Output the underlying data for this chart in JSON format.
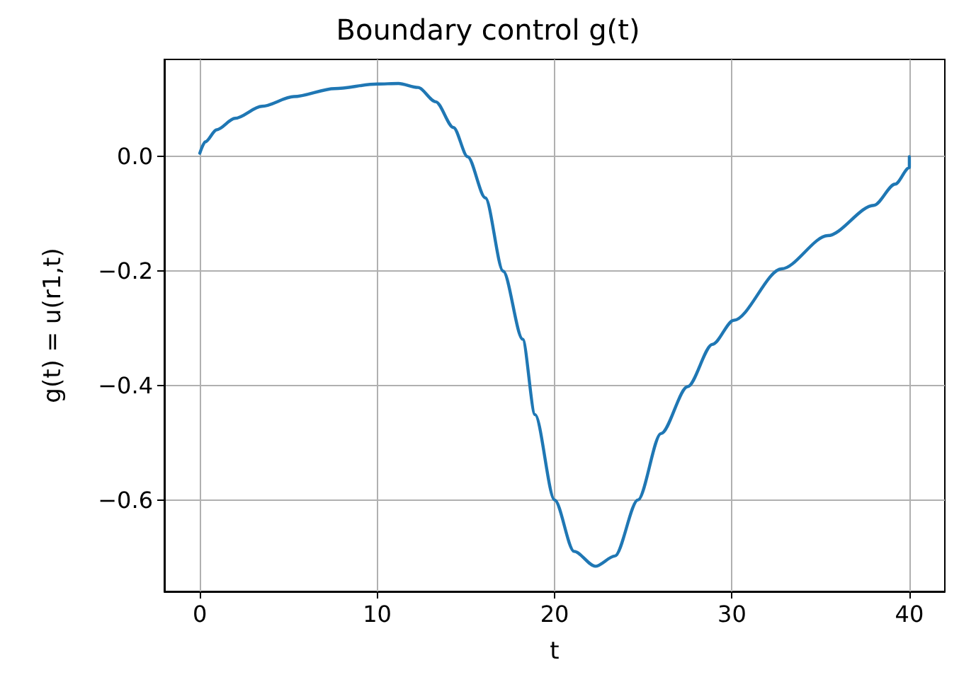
{
  "chart_data": {
    "type": "line",
    "title": "Boundary control g(t)",
    "xlabel": "t",
    "ylabel": "g(t) = u(r1,t)",
    "series": [
      {
        "color": "#1f77b4",
        "x": [
          0,
          0.31,
          0.95,
          1.98,
          3.5,
          5.3,
          7.6,
          10,
          11.2,
          12.3,
          13.3,
          14.3,
          15.1,
          16.1,
          17.1,
          18.2,
          18.9,
          20,
          21.1,
          22.3,
          23.4,
          24.7,
          26,
          27.5,
          28.9,
          30.1,
          32.8,
          35.4,
          38,
          39.2,
          40,
          40
        ],
        "values": [
          0.006,
          0.026,
          0.047,
          0.067,
          0.088,
          0.105,
          0.119,
          0.127,
          0.128,
          0.121,
          0.096,
          0.051,
          0,
          -0.072,
          -0.2,
          -0.319,
          -0.451,
          -0.6,
          -0.69,
          -0.716,
          -0.698,
          -0.6,
          -0.484,
          -0.402,
          -0.328,
          -0.286,
          -0.196,
          -0.138,
          -0.085,
          -0.048,
          -0.019,
          0
        ]
      }
    ],
    "xlim": [
      -2,
      42
    ],
    "xticks": [
      0,
      10,
      20,
      30,
      40
    ],
    "ylim": [
      -0.76,
      0.17
    ],
    "yticks": [
      {
        "value": -0.6,
        "label": "−0.6"
      },
      {
        "value": -0.4,
        "label": "−0.4"
      },
      {
        "value": -0.2,
        "label": "−0.2"
      },
      {
        "value": 0,
        "label": "0.0"
      }
    ],
    "grid": true,
    "marker": "none",
    "line_style": "solid"
  }
}
